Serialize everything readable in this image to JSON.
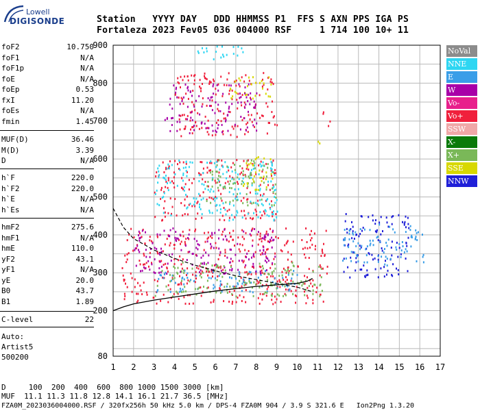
{
  "logo": {
    "brand": "Lowell",
    "name": "DIGISONDE"
  },
  "header": {
    "line1": "Station   YYYY DAY   DDD HHMMSS P1  FFS S AXN PPS IGA PS",
    "line2": "Fortaleza 2023 Fev05 036 004000 RSF     1 714 100 10+ 11"
  },
  "params_group1": [
    {
      "label": "foF2",
      "value": "10.750"
    },
    {
      "label": "foF1",
      "value": "N/A"
    },
    {
      "label": "foF1p",
      "value": "N/A"
    },
    {
      "label": "foE",
      "value": "N/A"
    },
    {
      "label": "foEp",
      "value": "0.53"
    },
    {
      "label": "fxI",
      "value": "11.20"
    },
    {
      "label": "foEs",
      "value": "N/A"
    },
    {
      "label": "fmin",
      "value": "1.45"
    }
  ],
  "params_group2": [
    {
      "label": "MUF(D)",
      "value": "36.46"
    },
    {
      "label": "M(D)",
      "value": "3.39"
    },
    {
      "label": "D",
      "value": "N/A"
    }
  ],
  "params_group3": [
    {
      "label": "h`F",
      "value": "220.0"
    },
    {
      "label": "h`F2",
      "value": "220.0"
    },
    {
      "label": "h`E",
      "value": "N/A"
    },
    {
      "label": "h`Es",
      "value": "N/A"
    }
  ],
  "params_group4": [
    {
      "label": "hmF2",
      "value": "275.6"
    },
    {
      "label": "hmF1",
      "value": "N/A"
    },
    {
      "label": "hmE",
      "value": "110.0"
    },
    {
      "label": "yF2",
      "value": "43.1"
    },
    {
      "label": "yF1",
      "value": "N/A"
    },
    {
      "label": "yE",
      "value": "20.0"
    },
    {
      "label": "B0",
      "value": "43.7"
    },
    {
      "label": "B1",
      "value": "1.89"
    }
  ],
  "clevel": {
    "label": "C-level",
    "value": "22"
  },
  "autoscale": {
    "line1": "Auto:",
    "line2": "Artist5",
    "line3": "500200"
  },
  "legend": [
    {
      "label": "NoVal",
      "color": "#8c8c8c"
    },
    {
      "label": "NNE",
      "color": "#2ed6f2"
    },
    {
      "label": "E",
      "color": "#3a9ee8"
    },
    {
      "label": "W",
      "color": "#a800a8"
    },
    {
      "label": "Vo-",
      "color": "#e8208c"
    },
    {
      "label": "Vo+",
      "color": "#f0203c"
    },
    {
      "label": "SSW",
      "color": "#f0a8a8"
    },
    {
      "label": "X-",
      "color": "#0a7a0a"
    },
    {
      "label": "X+",
      "color": "#7ab858"
    },
    {
      "label": "SSE",
      "color": "#d8d800"
    },
    {
      "label": "NNW",
      "color": "#2020d8"
    }
  ],
  "footer": {
    "d_line": "D     100  200  400  600  800 1000 1500 3000 [km]",
    "muf_line": "MUF  11.1 11.3 11.8 12.8 14.1 16.1 21.7 36.5 [MHz]",
    "file_line": "FZA0M_2023036004000.RSF / 320fx256h 50 kHz 5.0 km / DPS-4 FZA0M 904 / 3.9 S 321.6 E   Ion2Png 1.3.20"
  },
  "chart_data": {
    "type": "scatter",
    "xlim": [
      1,
      17
    ],
    "ylim": [
      80,
      900
    ],
    "x_ticks": [
      1,
      2,
      3,
      4,
      5,
      6,
      7,
      8,
      9,
      10,
      11,
      12,
      13,
      14,
      15,
      16,
      17
    ],
    "y_ticks": [
      80,
      200,
      300,
      400,
      500,
      600,
      700,
      800,
      900
    ],
    "grid": true,
    "ordinary_trace": [
      [
        1.0,
        200
      ],
      [
        1.5,
        210
      ],
      [
        2,
        218
      ],
      [
        3,
        228
      ],
      [
        4,
        236
      ],
      [
        5,
        244
      ],
      [
        6,
        252
      ],
      [
        7,
        258
      ],
      [
        8,
        264
      ],
      [
        9,
        268
      ],
      [
        10,
        272
      ],
      [
        10.5,
        278
      ],
      [
        10.75,
        285
      ]
    ],
    "profile_curve": [
      [
        1.0,
        470
      ],
      [
        1.5,
        420
      ],
      [
        2,
        390
      ],
      [
        3,
        360
      ],
      [
        4,
        338
      ],
      [
        5,
        320
      ],
      [
        6,
        305
      ],
      [
        7,
        292
      ],
      [
        8,
        282
      ],
      [
        9,
        272
      ],
      [
        10,
        262
      ],
      [
        10.75,
        250
      ]
    ],
    "echo_regions": [
      {
        "code": "Vo+",
        "x0": 1.4,
        "x1": 11.5,
        "y0": 220,
        "y1": 420
      },
      {
        "code": "E",
        "x0": 3.0,
        "x1": 10.0,
        "y0": 250,
        "y1": 310
      },
      {
        "code": "W",
        "x0": 2.0,
        "x1": 9.0,
        "y0": 300,
        "y1": 420
      },
      {
        "code": "X+",
        "x0": 3.0,
        "x1": 11.2,
        "y0": 240,
        "y1": 330
      },
      {
        "code": "NNW",
        "x0": 12.2,
        "x1": 15.5,
        "y0": 290,
        "y1": 460
      },
      {
        "code": "E",
        "x0": 12.2,
        "x1": 16.2,
        "y0": 320,
        "y1": 430
      },
      {
        "code": "Vo+",
        "x0": 3.0,
        "x1": 9.0,
        "y0": 440,
        "y1": 600
      },
      {
        "code": "NNE",
        "x0": 3.0,
        "x1": 9.0,
        "y0": 440,
        "y1": 600
      },
      {
        "code": "X+",
        "x0": 5.5,
        "x1": 9.0,
        "y0": 480,
        "y1": 600
      },
      {
        "code": "SSE",
        "x0": 7.0,
        "x1": 8.8,
        "y0": 520,
        "y1": 610
      },
      {
        "code": "Vo+",
        "x0": 4.0,
        "x1": 9.0,
        "y0": 660,
        "y1": 830
      },
      {
        "code": "SSE",
        "x0": 6.5,
        "x1": 8.8,
        "y0": 760,
        "y1": 820
      },
      {
        "code": "W",
        "x0": 3.5,
        "x1": 8.0,
        "y0": 670,
        "y1": 800
      },
      {
        "code": "NNE",
        "x0": 5.0,
        "x1": 7.5,
        "y0": 860,
        "y1": 900
      },
      {
        "code": "SSE",
        "x0": 10.9,
        "x1": 11.3,
        "y0": 630,
        "y1": 660
      },
      {
        "code": "Vo+",
        "x0": 11.2,
        "x1": 11.6,
        "y0": 680,
        "y1": 730
      }
    ]
  }
}
